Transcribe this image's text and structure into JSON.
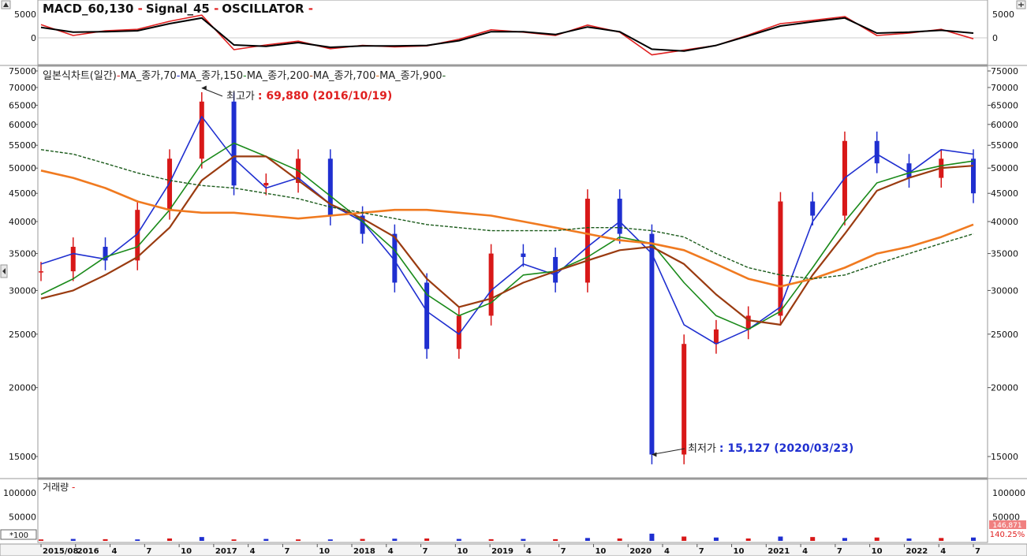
{
  "macd_panel": {
    "legend": [
      {
        "label": "MACD_60,130",
        "dash": " -",
        "color": "#e02020"
      },
      {
        "label": "Signal_45",
        "dash": " -",
        "color": "#000000"
      },
      {
        "label": "OSCILLATOR",
        "dash": " -",
        "color": "#e02020"
      }
    ],
    "yticks": [
      "5000",
      "0"
    ]
  },
  "price_panel": {
    "legend": [
      {
        "label": "일본식차트(일간)",
        "dash": "-",
        "color": "#e02020"
      },
      {
        "label": "MA_종가,70",
        "dash": "-",
        "color": "#1f2fd0"
      },
      {
        "label": "MA_종가,150",
        "dash": "-",
        "color": "#1a8a1a"
      },
      {
        "label": "MA_종가,200",
        "dash": "-",
        "color": "#9a3b10"
      },
      {
        "label": "MA_종가,700",
        "dash": "-",
        "color": "#f07a20"
      },
      {
        "label": "MA_종가,900",
        "dash": "-",
        "color": "#1a5a1a"
      }
    ],
    "yticks": [
      "75000",
      "70000",
      "65000",
      "60000",
      "55000",
      "50000",
      "45000",
      "40000",
      "35000",
      "30000",
      "25000",
      "20000",
      "15000"
    ],
    "high_annotation": {
      "prefix": "최고가",
      "value": ": 69,880 (2016/10/19)"
    },
    "low_annotation": {
      "prefix": "최저가",
      "value": ": 15,127 (2020/03/23)"
    }
  },
  "volume_panel": {
    "legend": {
      "label": "거래량",
      "dash": " -",
      "color": "#e02020"
    },
    "yticks": [
      "100000",
      "50000"
    ],
    "unit": "*100",
    "badge_top": "146,871",
    "badge_bottom": "140.25%"
  },
  "x_axis": {
    "labels": [
      "2015/08",
      "2016",
      "4",
      "7",
      "10",
      "2017",
      "4",
      "7",
      "10",
      "2018",
      "4",
      "7",
      "10",
      "2019",
      "4",
      "7",
      "10",
      "2020",
      "4",
      "7",
      "10",
      "2021",
      "4",
      "7",
      "10",
      "2022",
      "4",
      "7"
    ]
  },
  "chart_data": {
    "type": "line",
    "title": "",
    "x": [
      "2015/08",
      "2015/10",
      "2016/01",
      "2016/04",
      "2016/07",
      "2016/10",
      "2017/01",
      "2017/04",
      "2017/07",
      "2017/10",
      "2018/01",
      "2018/04",
      "2018/07",
      "2018/10",
      "2019/01",
      "2019/04",
      "2019/07",
      "2019/10",
      "2020/01",
      "2020/03",
      "2020/04",
      "2020/07",
      "2020/10",
      "2021/01",
      "2021/04",
      "2021/07",
      "2021/10",
      "2022/01",
      "2022/04",
      "2022/07"
    ],
    "y_scale": "log",
    "ylim": [
      14000,
      75000
    ],
    "series": [
      {
        "name": "일본식차트(일간)",
        "color": "#d81818",
        "values": [
          32500,
          36000,
          34000,
          42000,
          52000,
          66000,
          46500,
          47000,
          52000,
          41000,
          38000,
          31000,
          23500,
          27000,
          35000,
          34500,
          31000,
          44000,
          38000,
          15127,
          24000,
          25500,
          27000,
          43500,
          41000,
          56000,
          51000,
          48000,
          52000,
          45000
        ]
      },
      {
        "name": "MA_종가,70",
        "color": "#1f2fd0",
        "values": [
          33500,
          35000,
          34200,
          38000,
          47000,
          62000,
          52000,
          46000,
          48000,
          43000,
          40000,
          34000,
          27500,
          25000,
          30000,
          33500,
          32000,
          36000,
          40000,
          35000,
          26000,
          24000,
          25500,
          28000,
          40000,
          48000,
          53000,
          49000,
          54000,
          53000
        ]
      },
      {
        "name": "MA_종가,150",
        "color": "#1a8a1a",
        "values": [
          29500,
          31500,
          34500,
          36000,
          42000,
          51000,
          55500,
          52500,
          49500,
          44500,
          40000,
          35500,
          29500,
          27000,
          28500,
          32000,
          32500,
          34500,
          37500,
          36500,
          31000,
          27000,
          25500,
          27500,
          33000,
          40000,
          47000,
          49000,
          50500,
          51500
        ]
      },
      {
        "name": "MA_종가,200",
        "color": "#9a3b10",
        "values": [
          29000,
          30000,
          32000,
          34500,
          39000,
          47500,
          52500,
          52500,
          47500,
          43000,
          40500,
          37500,
          31500,
          28000,
          29000,
          31000,
          32500,
          34000,
          35500,
          36000,
          33500,
          29500,
          26500,
          26000,
          32000,
          38000,
          45500,
          48000,
          50000,
          50500
        ]
      },
      {
        "name": "MA_종가,700",
        "color": "#f07a20",
        "values": [
          49500,
          48000,
          46000,
          43500,
          42000,
          41500,
          41500,
          41000,
          40500,
          41000,
          41500,
          42000,
          42000,
          41500,
          41000,
          40000,
          39000,
          38000,
          37000,
          36500,
          35500,
          33500,
          31500,
          30500,
          31500,
          33000,
          35000,
          36000,
          37500,
          39500
        ]
      },
      {
        "name": "MA_종가,900",
        "color": "#1a5a1a",
        "values": [
          54000,
          53000,
          51000,
          49000,
          47500,
          46500,
          46000,
          45000,
          44000,
          42500,
          41500,
          40500,
          39500,
          39000,
          38500,
          38500,
          38500,
          39000,
          39000,
          38500,
          37500,
          35000,
          33000,
          32000,
          31500,
          32000,
          33500,
          35000,
          36500,
          38000
        ]
      }
    ],
    "macd": {
      "series": [
        {
          "name": "MACD_60,130",
          "color": "#e02020",
          "values": [
            2800,
            500,
            1500,
            1800,
            3500,
            4800,
            -2500,
            -1500,
            -700,
            -2300,
            -1600,
            -1900,
            -1700,
            -300,
            1700,
            1200,
            500,
            2700,
            1200,
            -3600,
            -2600,
            -1600,
            600,
            3000,
            3700,
            4500,
            500,
            1000,
            1800,
            -200
          ]
        },
        {
          "name": "Signal_45",
          "color": "#000000",
          "values": [
            2200,
            1200,
            1300,
            1500,
            3000,
            4200,
            -1500,
            -1800,
            -1000,
            -2000,
            -1700,
            -1700,
            -1600,
            -600,
            1300,
            1300,
            700,
            2300,
            1300,
            -2400,
            -2800,
            -1600,
            400,
            2500,
            3400,
            4200,
            1000,
            1200,
            1600,
            1000
          ]
        }
      ],
      "ylim": [
        -5000,
        7000
      ]
    },
    "volume": {
      "values": [
        3000,
        4000,
        3500,
        3000,
        5000,
        8000,
        3000,
        4000,
        3000,
        3000,
        4000,
        4500,
        5000,
        4000,
        3500,
        4000,
        3500,
        6000,
        5000,
        15000,
        9000,
        7000,
        5000,
        9000,
        8000,
        6000,
        7000,
        5000,
        6000,
        7000
      ],
      "ylim": [
        0,
        125000
      ]
    },
    "annotations": [
      {
        "text": "최고가 : 69,880 (2016/10/19)",
        "x": "2016/10/19",
        "y": 69880
      },
      {
        "text": "최저가 : 15,127 (2020/03/23)",
        "x": "2020/03/23",
        "y": 15127
      }
    ],
    "grid": false,
    "legend_position": "top-left"
  }
}
